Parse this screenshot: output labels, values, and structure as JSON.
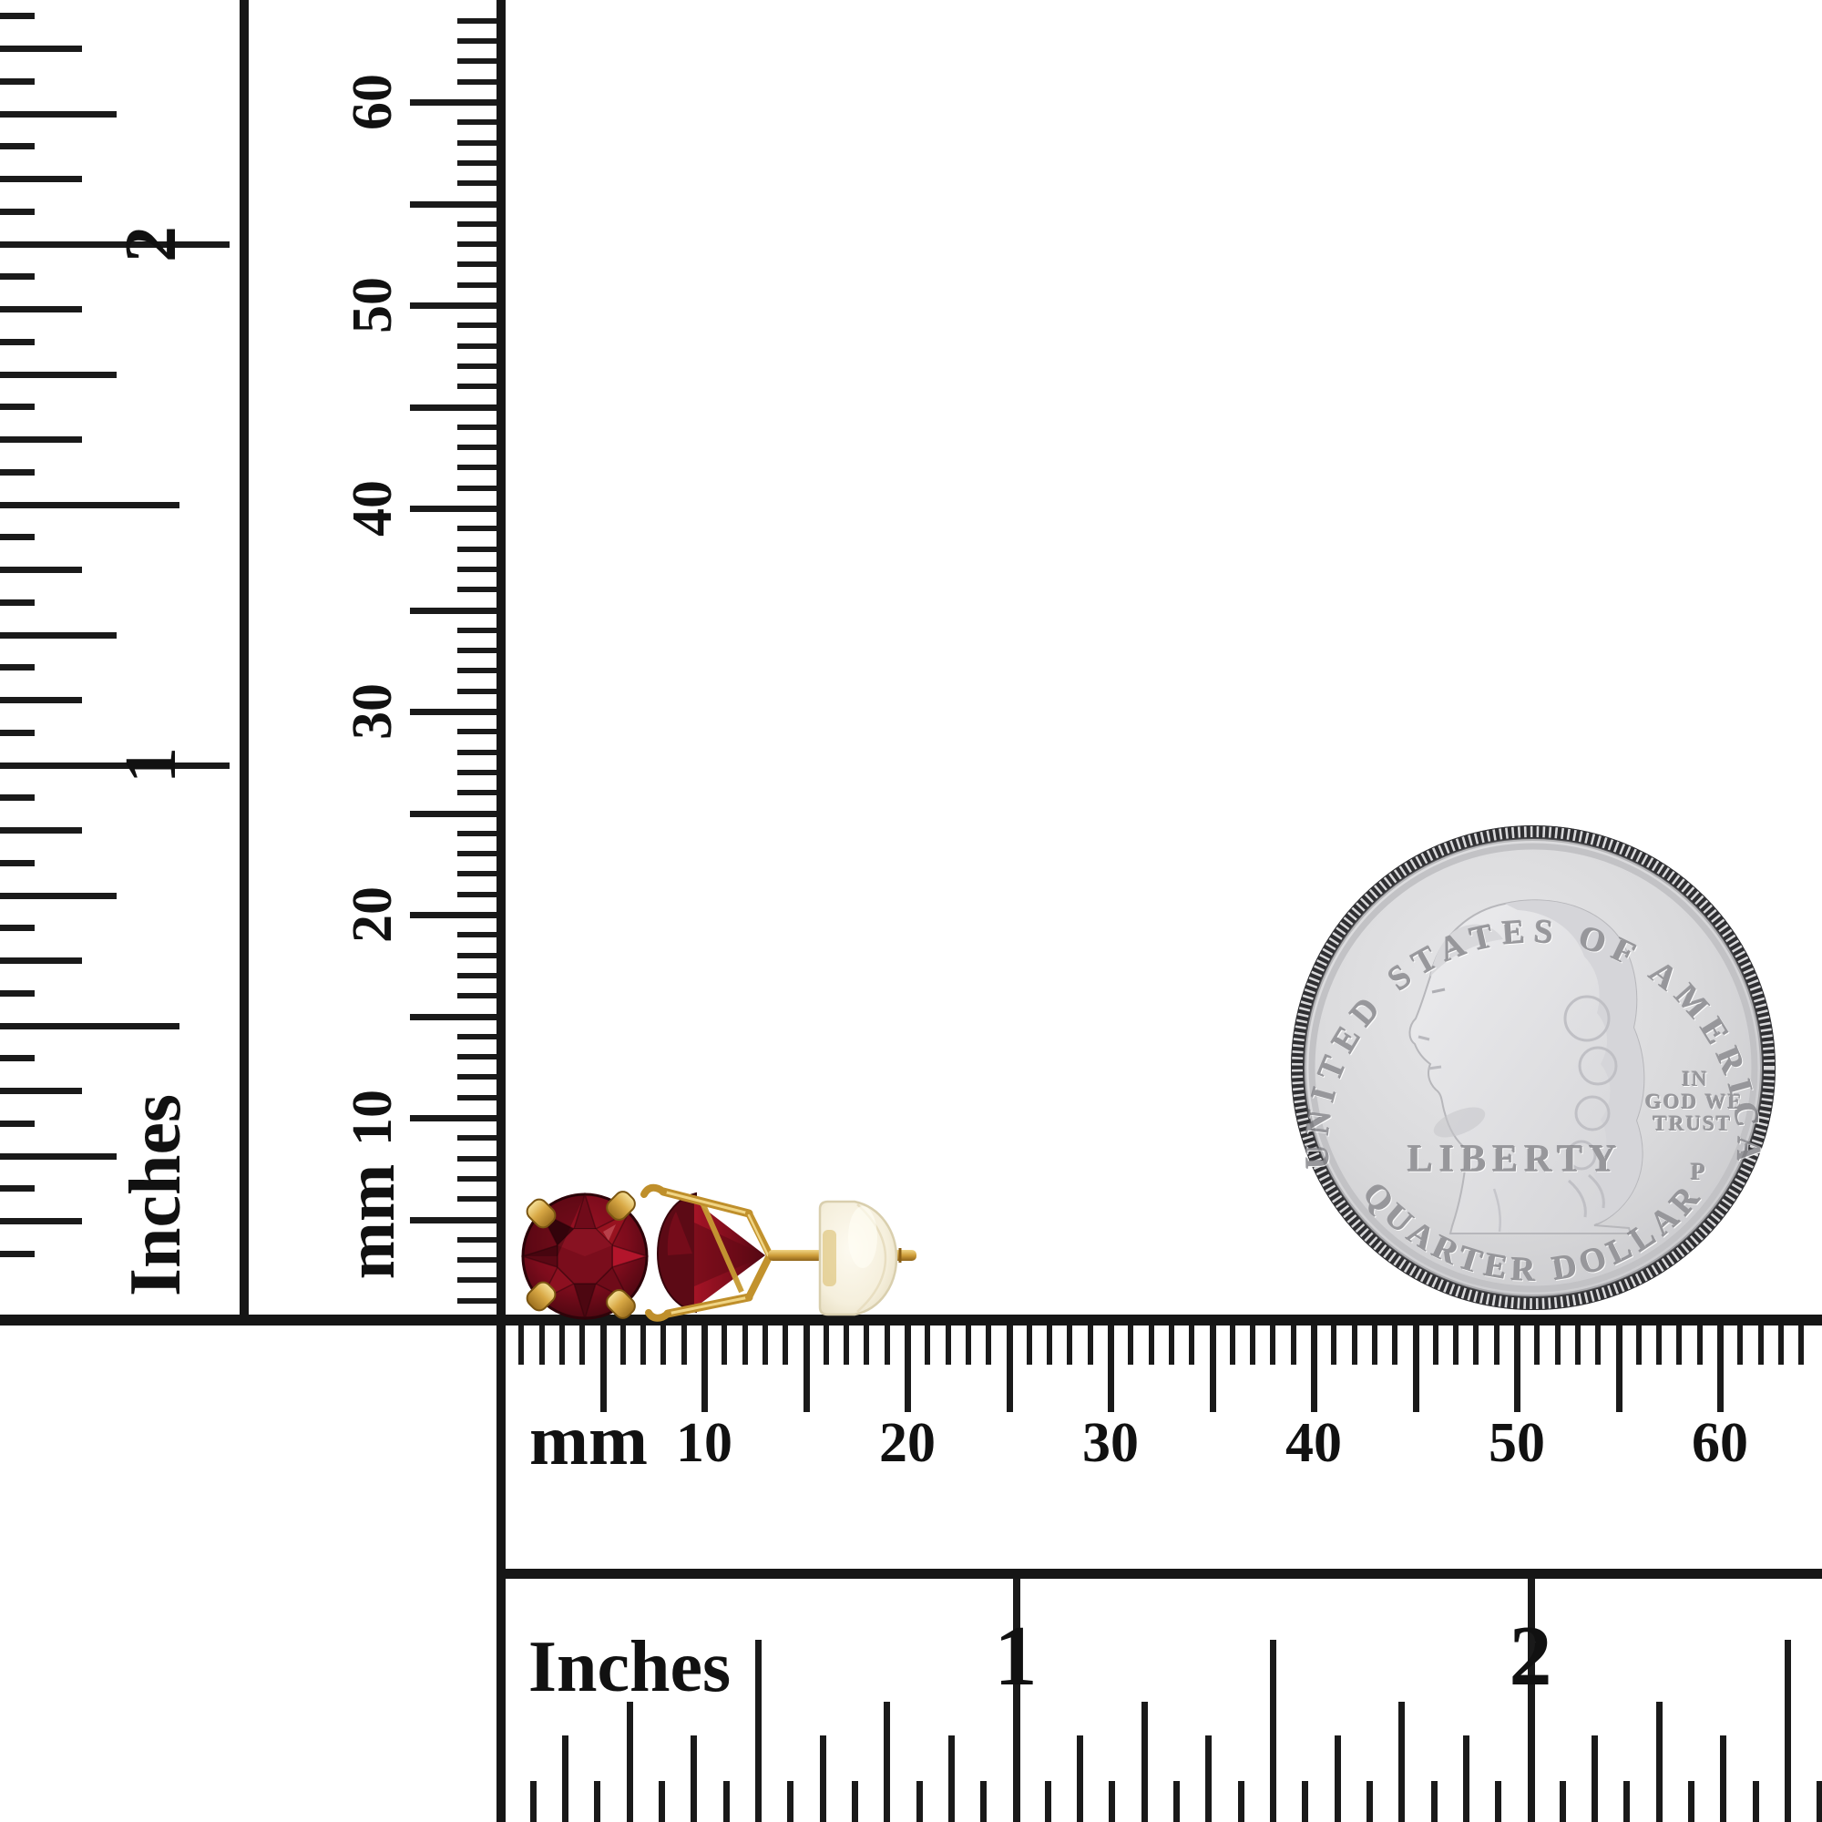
{
  "scene": {
    "description": "Garnet stud earrings with gold martini settings shown to scale between inch and millimeter rulers, with a US quarter for size comparison",
    "background": "#ffffff",
    "ink": "#161616"
  },
  "rulers": {
    "left_inches": {
      "unit": "Inches",
      "numerals": [
        "1",
        "2"
      ]
    },
    "left_mm": {
      "unit": "mm",
      "numerals": [
        "10",
        "20",
        "30",
        "40",
        "50",
        "60"
      ]
    },
    "bottom_mm": {
      "unit": "mm",
      "numerals": [
        "10",
        "20",
        "30",
        "40",
        "50",
        "60"
      ]
    },
    "bottom_inches": {
      "unit": "Inches",
      "numerals": [
        "1",
        "2"
      ]
    }
  },
  "coin": {
    "top_legend": "UNITED STATES OF AMERICA",
    "liberty": "LIBERTY",
    "motto": [
      "IN",
      "GOD WE",
      "TRUST"
    ],
    "mint_mark": "P",
    "denomination": "QUARTER DOLLAR",
    "face_color": "#d6d6d9",
    "edge_color": "#3f3f42",
    "engraving_color": "#97979b"
  },
  "earrings": {
    "stone": "garnet",
    "stone_dark": "#42050f",
    "stone_mid": "#8c0f1f",
    "stone_bright": "#b2142a",
    "metal": "#d8a845",
    "metal_dark": "#8a5f16",
    "metal_light": "#f3dc8e",
    "back_color": "#f5efdc"
  }
}
